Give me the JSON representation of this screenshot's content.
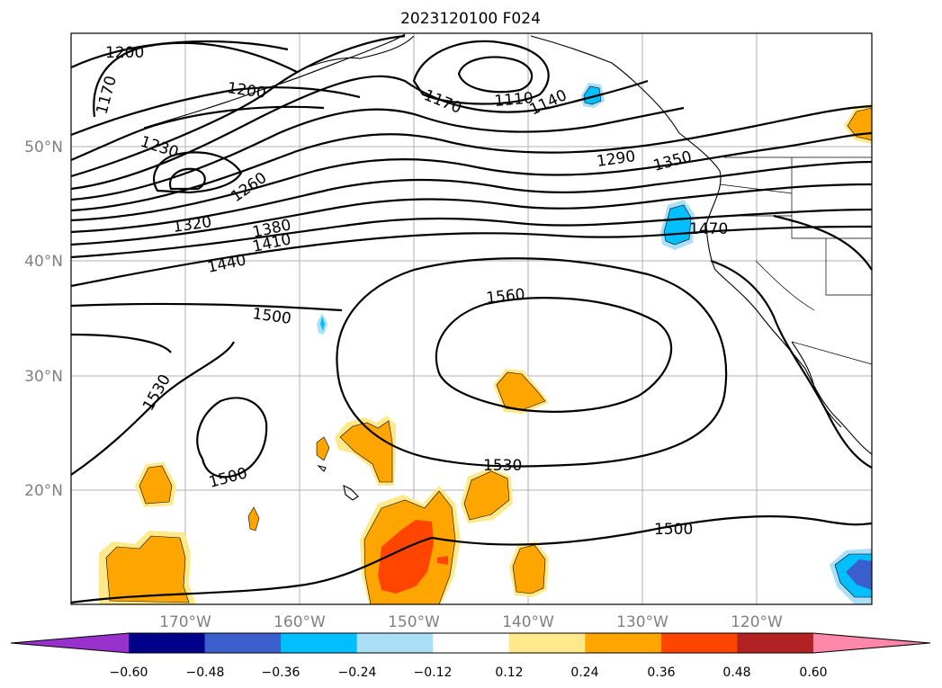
{
  "title": "2023120100 F024",
  "map": {
    "lat_labels": [
      "50°N",
      "40°N",
      "30°N",
      "20°N"
    ],
    "lon_labels": [
      "170°W",
      "160°W",
      "150°W",
      "140°W",
      "130°W",
      "120°W"
    ],
    "contour_labels": [
      "1200",
      "1170",
      "1200",
      "1230",
      "1260",
      "1320",
      "1380",
      "1410",
      "1440",
      "1500",
      "1530",
      "1500",
      "1170",
      "1110",
      "1140",
      "1290",
      "1350",
      "1470",
      "1560",
      "1530",
      "1500"
    ],
    "fill_colors": {
      "light_blue": "#aadff7",
      "sky_blue": "#00bfff",
      "royal_blue": "#3a5fcd",
      "pale_yellow": "#ffe98a",
      "orange": "#ffa500",
      "red_orange": "#ff4500"
    }
  },
  "colorbar": {
    "ticks": [
      "−0.60",
      "−0.48",
      "−0.36",
      "−0.24",
      "−0.12",
      "0.12",
      "0.24",
      "0.36",
      "0.48",
      "0.60"
    ],
    "colors": [
      "#9932cc",
      "#00008b",
      "#3a5fcd",
      "#00bfff",
      "#aadff7",
      "#ffffff",
      "#ffe98a",
      "#ffa500",
      "#ff4500",
      "#b22222",
      "#ff88aa"
    ]
  }
}
